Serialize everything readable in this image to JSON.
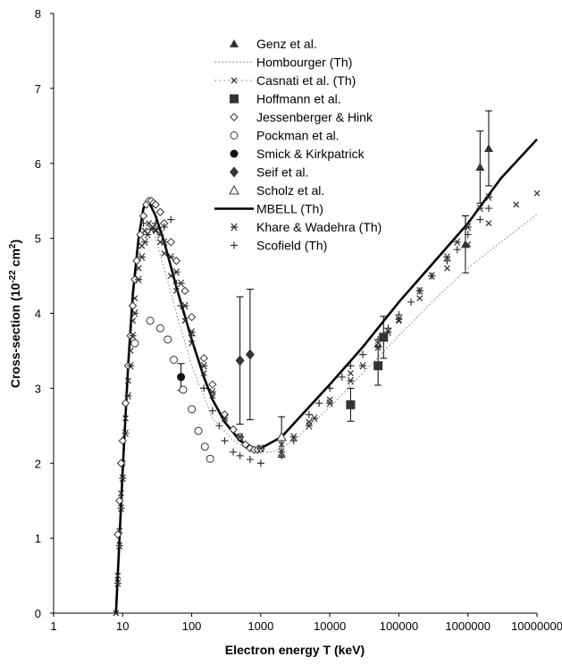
{
  "chart_data": {
    "type": "scatter",
    "x_scale": "log",
    "x_axis_label": "Electron energy T (keV)",
    "y_axis_label": {
      "prefix": "Cross-section (10",
      "exp1": "-22",
      "mid": " cm",
      "exp2": "2",
      "suffix": ")"
    },
    "xlim": [
      1,
      10000000
    ],
    "ylim": [
      0,
      8
    ],
    "x_tick_labels": [
      "1",
      "10",
      "100",
      "1000",
      "10000",
      "100000",
      "1000000",
      "10000000"
    ],
    "y_tick_labels": [
      "0",
      "1",
      "2",
      "3",
      "4",
      "5",
      "6",
      "7",
      "8"
    ],
    "legend_position": "top-center",
    "series": [
      {
        "name": "Genz et al.",
        "marker": "triangle",
        "color": "#333333",
        "points": [
          [
            920000,
            4.92,
            0.38
          ],
          [
            1500000,
            5.95,
            0.48
          ],
          [
            2000000,
            6.2,
            0.5
          ]
        ]
      },
      {
        "name": "Hombourger (Th)",
        "marker": "dotted-line",
        "color": "#9a9a9a",
        "points": [
          [
            8,
            0
          ],
          [
            9,
            0.8
          ],
          [
            10,
            1.9
          ],
          [
            12,
            3.2
          ],
          [
            15,
            4.4
          ],
          [
            20,
            5.1
          ],
          [
            25,
            5.2
          ],
          [
            30,
            5.0
          ],
          [
            40,
            4.6
          ],
          [
            60,
            4.0
          ],
          [
            100,
            3.3
          ],
          [
            200,
            2.6
          ],
          [
            400,
            2.3
          ],
          [
            800,
            2.15
          ],
          [
            1500,
            2.15
          ],
          [
            3000,
            2.3
          ],
          [
            10000,
            2.75
          ],
          [
            30000,
            3.2
          ],
          [
            100000,
            3.7
          ],
          [
            300000,
            4.15
          ],
          [
            1000000,
            4.6
          ],
          [
            3000000,
            4.95
          ],
          [
            10000000,
            5.32
          ]
        ]
      },
      {
        "name": "Casnati et al. (Th)",
        "marker": "x",
        "color": "#333333",
        "points": [
          [
            8,
            0.0
          ],
          [
            8.5,
            0.5
          ],
          [
            9,
            1.1
          ],
          [
            9.5,
            1.6
          ],
          [
            10,
            2.0
          ],
          [
            11,
            2.6
          ],
          [
            12,
            3.1
          ],
          [
            13,
            3.5
          ],
          [
            14,
            3.9
          ],
          [
            15,
            4.2
          ],
          [
            17,
            4.6
          ],
          [
            19,
            4.9
          ],
          [
            21,
            5.1
          ],
          [
            24,
            5.2
          ],
          [
            27,
            5.15
          ],
          [
            30,
            5.1
          ],
          [
            35,
            4.95
          ],
          [
            40,
            4.8
          ],
          [
            50,
            4.5
          ],
          [
            60,
            4.3
          ],
          [
            80,
            3.9
          ],
          [
            100,
            3.6
          ],
          [
            150,
            3.2
          ],
          [
            200,
            2.9
          ],
          [
            300,
            2.6
          ],
          [
            500,
            2.35
          ],
          [
            1000,
            2.2
          ],
          [
            2000,
            2.25
          ],
          [
            5000,
            2.55
          ],
          [
            10000,
            2.85
          ],
          [
            20000,
            3.2
          ],
          [
            50000,
            3.6
          ],
          [
            100000,
            3.9
          ],
          [
            200000,
            4.2
          ],
          [
            500000,
            4.6
          ],
          [
            1000000,
            4.92
          ],
          [
            2000000,
            5.2
          ],
          [
            5000000,
            5.45
          ],
          [
            10000000,
            5.6
          ]
        ]
      },
      {
        "name": "Hoffmann et al.",
        "marker": "square",
        "color": "#333333",
        "points": [
          [
            20000,
            2.78,
            0.22
          ],
          [
            50000,
            3.3,
            0.26
          ],
          [
            60000,
            3.68,
            0.28
          ]
        ]
      },
      {
        "name": "Jessenberger & Hink",
        "marker": "diamond-open",
        "color": "#333333",
        "points": [
          [
            8.5,
            1.05
          ],
          [
            9,
            1.5
          ],
          [
            9.5,
            2.0
          ],
          [
            10,
            2.3
          ],
          [
            11,
            2.8
          ],
          [
            12,
            3.3
          ],
          [
            13,
            3.7
          ],
          [
            14,
            4.1
          ],
          [
            15,
            4.45
          ],
          [
            16,
            4.7
          ],
          [
            18,
            5.05
          ],
          [
            20,
            5.3
          ],
          [
            22,
            5.45
          ],
          [
            24,
            5.5
          ],
          [
            26,
            5.5
          ],
          [
            28,
            5.47
          ],
          [
            30,
            5.45
          ],
          [
            35,
            5.35
          ],
          [
            40,
            5.2
          ],
          [
            50,
            4.95
          ],
          [
            60,
            4.7
          ],
          [
            80,
            4.3
          ],
          [
            100,
            3.95
          ],
          [
            150,
            3.4
          ],
          [
            200,
            3.05
          ],
          [
            300,
            2.65
          ],
          [
            400,
            2.45
          ],
          [
            500,
            2.35
          ],
          [
            600,
            2.25
          ],
          [
            700,
            2.2
          ],
          [
            800,
            2.18
          ],
          [
            900,
            2.18
          ],
          [
            1000,
            2.19
          ]
        ]
      },
      {
        "name": "Pockman et al.",
        "marker": "circle-open",
        "color": "#333333",
        "points": [
          [
            15,
            3.6
          ],
          [
            25,
            3.9
          ],
          [
            35,
            3.8
          ],
          [
            45,
            3.65
          ],
          [
            55,
            3.38
          ],
          [
            75,
            2.98
          ],
          [
            100,
            2.72
          ],
          [
            125,
            2.43
          ],
          [
            155,
            2.22
          ],
          [
            185,
            2.06
          ]
        ]
      },
      {
        "name": "Smick & Kirkpatrick",
        "marker": "circle-filled",
        "color": "#111111",
        "points": [
          [
            70,
            3.15,
            0.18
          ]
        ]
      },
      {
        "name": "Seif et al.",
        "marker": "diamond-filled",
        "color": "#333333",
        "points": [
          [
            500,
            3.37,
            0.85
          ],
          [
            700,
            3.45,
            0.87
          ]
        ]
      },
      {
        "name": "Scholz et al.",
        "marker": "triangle-open",
        "color": "#333333",
        "points": [
          [
            2000,
            2.35,
            0.27
          ]
        ]
      },
      {
        "name": "MBELL (Th)",
        "marker": "solid-line",
        "color": "#000000",
        "points": [
          [
            8,
            0
          ],
          [
            9,
            1.0
          ],
          [
            10,
            1.9
          ],
          [
            12,
            3.3
          ],
          [
            14,
            4.25
          ],
          [
            17,
            5.0
          ],
          [
            20,
            5.4
          ],
          [
            22,
            5.48
          ],
          [
            25,
            5.45
          ],
          [
            30,
            5.3
          ],
          [
            40,
            4.95
          ],
          [
            60,
            4.35
          ],
          [
            100,
            3.65
          ],
          [
            150,
            3.15
          ],
          [
            200,
            2.85
          ],
          [
            300,
            2.55
          ],
          [
            500,
            2.3
          ],
          [
            800,
            2.2
          ],
          [
            1000,
            2.2
          ],
          [
            2000,
            2.35
          ],
          [
            5000,
            2.75
          ],
          [
            10000,
            3.05
          ],
          [
            30000,
            3.55
          ],
          [
            100000,
            4.15
          ],
          [
            300000,
            4.65
          ],
          [
            1000000,
            5.2
          ],
          [
            3000000,
            5.8
          ],
          [
            10000000,
            6.32
          ]
        ]
      },
      {
        "name": "Khare & Wadehra (Th)",
        "marker": "asterisk",
        "color": "#333333",
        "points": [
          [
            8.5,
            0.4
          ],
          [
            9,
            0.9
          ],
          [
            9.5,
            1.4
          ],
          [
            10,
            1.8
          ],
          [
            11,
            2.4
          ],
          [
            12,
            2.9
          ],
          [
            13,
            3.3
          ],
          [
            14,
            3.7
          ],
          [
            15,
            4.0
          ],
          [
            17,
            4.45
          ],
          [
            19,
            4.75
          ],
          [
            21,
            4.95
          ],
          [
            23,
            5.05
          ],
          [
            26,
            5.12
          ],
          [
            30,
            5.12
          ],
          [
            35,
            5.05
          ],
          [
            40,
            4.95
          ],
          [
            50,
            4.75
          ],
          [
            60,
            4.55
          ],
          [
            70,
            4.4
          ],
          [
            80,
            4.1
          ],
          [
            100,
            3.75
          ],
          [
            150,
            3.3
          ],
          [
            200,
            2.95
          ],
          [
            300,
            2.6
          ],
          [
            500,
            2.35
          ],
          [
            1000,
            2.2
          ],
          [
            2000,
            2.15
          ],
          [
            3000,
            2.35
          ],
          [
            5000,
            2.5
          ],
          [
            6000,
            2.6
          ],
          [
            10000,
            2.8
          ],
          [
            20000,
            3.1
          ],
          [
            30000,
            3.3
          ],
          [
            50000,
            3.55
          ],
          [
            70000,
            3.75
          ],
          [
            100000,
            3.92
          ],
          [
            200000,
            4.3
          ],
          [
            300000,
            4.5
          ],
          [
            500000,
            4.75
          ],
          [
            700000,
            4.95
          ],
          [
            1000000,
            5.15
          ],
          [
            1500000,
            5.4
          ],
          [
            2000000,
            5.55
          ]
        ]
      },
      {
        "name": "Scofield (Th)",
        "marker": "plus",
        "color": "#333333",
        "points": [
          [
            20,
            5.2
          ],
          [
            30,
            5.2
          ],
          [
            40,
            5.15
          ],
          [
            50,
            5.25
          ],
          [
            60,
            4.4
          ],
          [
            70,
            4.1
          ],
          [
            100,
            3.7
          ],
          [
            150,
            3.0
          ],
          [
            200,
            2.7
          ],
          [
            250,
            2.5
          ],
          [
            300,
            2.3
          ],
          [
            400,
            2.15
          ],
          [
            500,
            2.1
          ],
          [
            700,
            2.05
          ],
          [
            1000,
            2.0
          ],
          [
            2000,
            2.1
          ],
          [
            3000,
            2.3
          ],
          [
            5000,
            2.65
          ],
          [
            7000,
            2.8
          ],
          [
            10000,
            3.0
          ],
          [
            15000,
            3.15
          ],
          [
            20000,
            3.3
          ],
          [
            30000,
            3.45
          ],
          [
            50000,
            3.65
          ],
          [
            70000,
            3.8
          ],
          [
            100000,
            3.98
          ],
          [
            150000,
            4.15
          ],
          [
            200000,
            4.3
          ],
          [
            300000,
            4.5
          ],
          [
            500000,
            4.7
          ],
          [
            700000,
            4.85
          ],
          [
            1000000,
            5.05
          ],
          [
            1500000,
            5.25
          ],
          [
            2000000,
            5.4
          ]
        ]
      }
    ]
  }
}
